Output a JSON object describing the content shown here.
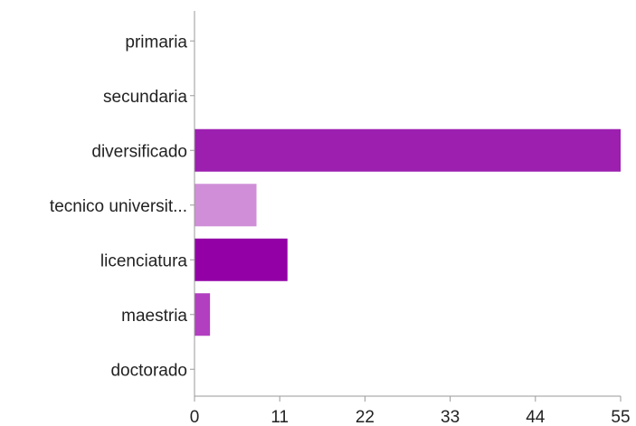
{
  "chart_data": {
    "type": "bar",
    "orientation": "horizontal",
    "categories": [
      "primaria",
      "secundaria",
      "diversificado",
      "tecnico universit...",
      "licenciatura",
      "maestria",
      "doctorado"
    ],
    "values": [
      0,
      0,
      55,
      8,
      12,
      2,
      0
    ],
    "colors": [
      "#9c1fb0",
      "#9c1fb0",
      "#9c1fb0",
      "#d08ed8",
      "#9200a6",
      "#b13fc0",
      "#9c1fb0"
    ],
    "xticks": [
      0,
      11,
      22,
      33,
      44,
      55
    ],
    "xlim": [
      0,
      55
    ],
    "grid": false,
    "title": "",
    "xlabel": "",
    "ylabel": ""
  }
}
